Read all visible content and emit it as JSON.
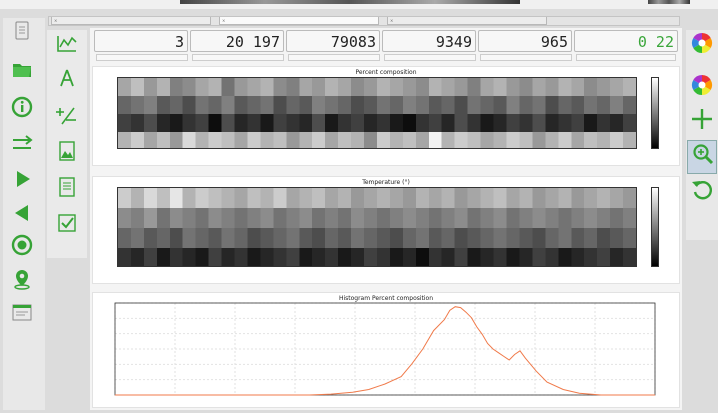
{
  "menubar": {
    "items": [
      "",
      "",
      ""
    ]
  },
  "tabs": [
    {
      "label": "",
      "active": false
    },
    {
      "label": "",
      "active": true
    },
    {
      "label": "",
      "active": false
    }
  ],
  "left_toolbar": [
    {
      "name": "new-document",
      "icon": "document-icon",
      "label": ""
    },
    {
      "name": "open-folder",
      "icon": "folder-icon",
      "label": ""
    },
    {
      "name": "info",
      "icon": "info-icon",
      "label": ""
    },
    {
      "name": "export",
      "icon": "export-icon",
      "label": ""
    },
    {
      "name": "play",
      "icon": "play-icon",
      "label": ""
    },
    {
      "name": "back",
      "icon": "back-icon",
      "label": ""
    },
    {
      "name": "record",
      "icon": "record-icon",
      "label": ""
    },
    {
      "name": "location",
      "icon": "location-icon",
      "label": ""
    },
    {
      "name": "window",
      "icon": "window-icon",
      "label": ""
    }
  ],
  "second_toolbar": [
    {
      "name": "line-chart",
      "icon": "line-chart-icon",
      "label": ""
    },
    {
      "name": "calibrate",
      "icon": "calibrate-icon",
      "label": ""
    },
    {
      "name": "statistics",
      "icon": "statistics-icon",
      "label": ""
    },
    {
      "name": "scan-image",
      "icon": "scan-image-icon",
      "label": ""
    },
    {
      "name": "report",
      "icon": "report-icon",
      "label": ""
    },
    {
      "name": "validate",
      "icon": "validate-icon",
      "label": ""
    }
  ],
  "right_toolbar": [
    {
      "name": "background-color",
      "icon": "color-wheel-icon",
      "label": "",
      "selected": false
    },
    {
      "name": "foreground-color",
      "icon": "color-wheel-icon",
      "label": "",
      "selected": false
    },
    {
      "name": "pan",
      "icon": "crosshair-icon",
      "label": "",
      "selected": false
    },
    {
      "name": "zoom",
      "icon": "zoom-icon",
      "label": "",
      "selected": true
    },
    {
      "name": "reset",
      "icon": "reset-icon",
      "label": "",
      "selected": false
    }
  ],
  "counters": [
    "3",
    "20 197",
    "79083",
    "9349",
    "965",
    "0 22"
  ],
  "captions": [
    "",
    "",
    "",
    "",
    "",
    ""
  ],
  "colors": {
    "accent_green": "#3aa63a",
    "histogram_line": "#f07a4a",
    "heatmap_dark": "#111111",
    "heatmap_light": "#ffffff"
  },
  "chart_data": [
    {
      "type": "heatmap",
      "title": "Percent composition",
      "x_ticks": [
        "",
        "",
        "",
        "",
        "",
        "",
        "",
        "",
        ""
      ],
      "y_ticks": [
        "",
        "",
        "",
        "",
        ""
      ],
      "colorbar_ticks": [
        "",
        "",
        "",
        "",
        ""
      ],
      "rows": [
        [
          0.35,
          0.25,
          0.4,
          0.3,
          0.5,
          0.45,
          0.35,
          0.3,
          0.55,
          0.4,
          0.35,
          0.3,
          0.45,
          0.5,
          0.35,
          0.4,
          0.3,
          0.35,
          0.45,
          0.4,
          0.3,
          0.35,
          0.4,
          0.45,
          0.3,
          0.35,
          0.4,
          0.5,
          0.35,
          0.3,
          0.4,
          0.45,
          0.35,
          0.4,
          0.3,
          0.35,
          0.45,
          0.4,
          0.35,
          0.3
        ],
        [
          0.6,
          0.55,
          0.5,
          0.65,
          0.6,
          0.7,
          0.55,
          0.6,
          0.5,
          0.65,
          0.6,
          0.55,
          0.7,
          0.6,
          0.65,
          0.5,
          0.55,
          0.6,
          0.7,
          0.65,
          0.55,
          0.6,
          0.5,
          0.55,
          0.65,
          0.6,
          0.7,
          0.55,
          0.6,
          0.65,
          0.5,
          0.6,
          0.55,
          0.7,
          0.6,
          0.65,
          0.55,
          0.6,
          0.5,
          0.6
        ],
        [
          0.75,
          0.8,
          0.7,
          0.85,
          0.9,
          0.8,
          0.75,
          0.95,
          0.7,
          0.85,
          0.8,
          0.9,
          0.75,
          0.8,
          0.85,
          0.7,
          0.9,
          0.8,
          0.75,
          0.85,
          0.8,
          0.9,
          0.95,
          0.8,
          0.75,
          0.85,
          0.7,
          0.8,
          0.9,
          0.85,
          0.75,
          0.8,
          0.7,
          0.85,
          0.8,
          0.75,
          0.9,
          0.8,
          0.85,
          0.75
        ],
        [
          0.3,
          0.2,
          0.35,
          0.25,
          0.4,
          0.15,
          0.3,
          0.2,
          0.25,
          0.35,
          0.2,
          0.3,
          0.25,
          0.4,
          0.3,
          0.2,
          0.35,
          0.25,
          0.3,
          0.45,
          0.2,
          0.3,
          0.25,
          0.35,
          0.05,
          0.3,
          0.2,
          0.25,
          0.35,
          0.3,
          0.2,
          0.25,
          0.4,
          0.3,
          0.2,
          0.35,
          0.25,
          0.3,
          0.2,
          0.3
        ]
      ]
    },
    {
      "type": "heatmap",
      "title": "Temperature (°)",
      "x_ticks": [
        "",
        "",
        "",
        "",
        "",
        "",
        "",
        "",
        ""
      ],
      "y_ticks": [
        "",
        "",
        "",
        "",
        ""
      ],
      "colorbar_ticks": [
        "",
        "",
        "",
        "",
        ""
      ],
      "rows": [
        [
          0.2,
          0.3,
          0.15,
          0.25,
          0.1,
          0.3,
          0.2,
          0.25,
          0.3,
          0.35,
          0.25,
          0.3,
          0.2,
          0.35,
          0.3,
          0.25,
          0.35,
          0.3,
          0.4,
          0.35,
          0.3,
          0.35,
          0.4,
          0.3,
          0.35,
          0.3,
          0.4,
          0.35,
          0.3,
          0.25,
          0.35,
          0.3,
          0.4,
          0.35,
          0.3,
          0.4,
          0.35,
          0.3,
          0.35,
          0.4
        ],
        [
          0.45,
          0.5,
          0.4,
          0.55,
          0.45,
          0.5,
          0.55,
          0.45,
          0.5,
          0.55,
          0.5,
          0.45,
          0.55,
          0.5,
          0.45,
          0.55,
          0.5,
          0.55,
          0.45,
          0.5,
          0.55,
          0.5,
          0.45,
          0.5,
          0.55,
          0.5,
          0.45,
          0.55,
          0.5,
          0.45,
          0.55,
          0.5,
          0.45,
          0.5,
          0.55,
          0.5,
          0.45,
          0.5,
          0.55,
          0.5
        ],
        [
          0.6,
          0.55,
          0.65,
          0.6,
          0.7,
          0.55,
          0.6,
          0.65,
          0.55,
          0.6,
          0.7,
          0.65,
          0.6,
          0.55,
          0.65,
          0.7,
          0.6,
          0.65,
          0.55,
          0.6,
          0.65,
          0.7,
          0.6,
          0.55,
          0.65,
          0.6,
          0.7,
          0.65,
          0.6,
          0.55,
          0.6,
          0.65,
          0.7,
          0.6,
          0.55,
          0.65,
          0.6,
          0.7,
          0.65,
          0.6
        ],
        [
          0.8,
          0.85,
          0.75,
          0.9,
          0.8,
          0.85,
          0.9,
          0.75,
          0.85,
          0.8,
          0.9,
          0.85,
          0.8,
          0.75,
          0.9,
          0.85,
          0.8,
          0.9,
          0.85,
          0.75,
          0.8,
          0.9,
          0.85,
          0.95,
          0.8,
          0.85,
          0.75,
          0.9,
          0.85,
          0.8,
          0.9,
          0.85,
          0.75,
          0.8,
          0.9,
          0.85,
          0.8,
          0.75,
          0.85,
          0.8
        ]
      ]
    },
    {
      "type": "line",
      "title": "Histogram Percent composition",
      "xlabel": "",
      "ylabel": "",
      "x_ticks": [
        "",
        "",
        "",
        "",
        "",
        "",
        "",
        "",
        "",
        ""
      ],
      "y_ticks": [
        "",
        "",
        "",
        "",
        "",
        "",
        ""
      ],
      "xlim": [
        0,
        100
      ],
      "ylim": [
        0,
        100
      ],
      "series": [
        {
          "name": "",
          "x": [
            0,
            10,
            20,
            30,
            36,
            40,
            44,
            47,
            50,
            53,
            55,
            57,
            59,
            61,
            62,
            63,
            64,
            65,
            66,
            67,
            68,
            69,
            70,
            71,
            72,
            73,
            74,
            75,
            76,
            78,
            80,
            83,
            86,
            90,
            95,
            100
          ],
          "values": [
            0,
            0,
            0,
            0,
            0,
            1,
            3,
            6,
            12,
            20,
            34,
            50,
            70,
            82,
            92,
            96,
            95,
            90,
            84,
            74,
            66,
            56,
            50,
            46,
            42,
            38,
            44,
            48,
            40,
            26,
            14,
            6,
            2,
            0,
            0,
            0
          ]
        }
      ]
    }
  ]
}
